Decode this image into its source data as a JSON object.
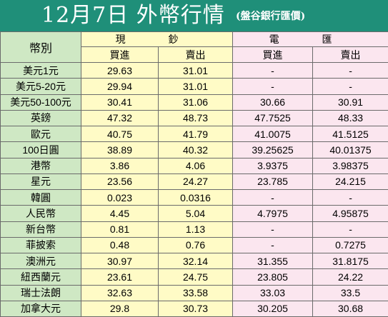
{
  "title": {
    "main": "12月7日 外幣行情",
    "sub": "(盤谷銀行匯價)"
  },
  "header": {
    "currency": "幣別",
    "cash": "現 鈔",
    "telegraphic": "電 匯",
    "buy": "買進",
    "sell": "賣出"
  },
  "rows": [
    {
      "name": "美元1元",
      "cash_buy": "29.63",
      "cash_sell": "31.01",
      "tt_buy": "-",
      "tt_sell": "-"
    },
    {
      "name": "美元5-20元",
      "cash_buy": "29.94",
      "cash_sell": "31.01",
      "tt_buy": "-",
      "tt_sell": "-"
    },
    {
      "name": "美元50-100元",
      "cash_buy": "30.41",
      "cash_sell": "31.06",
      "tt_buy": "30.66",
      "tt_sell": "30.91"
    },
    {
      "name": "英鎊",
      "cash_buy": "47.32",
      "cash_sell": "48.73",
      "tt_buy": "47.7525",
      "tt_sell": "48.33"
    },
    {
      "name": "歐元",
      "cash_buy": "40.75",
      "cash_sell": "41.79",
      "tt_buy": "41.0075",
      "tt_sell": "41.5125"
    },
    {
      "name": "100日圓",
      "cash_buy": "38.89",
      "cash_sell": "40.32",
      "tt_buy": "39.25625",
      "tt_sell": "40.01375"
    },
    {
      "name": "港幣",
      "cash_buy": "3.86",
      "cash_sell": "4.06",
      "tt_buy": "3.9375",
      "tt_sell": "3.98375"
    },
    {
      "name": "星元",
      "cash_buy": "23.56",
      "cash_sell": "24.27",
      "tt_buy": "23.785",
      "tt_sell": "24.215"
    },
    {
      "name": "韓圓",
      "cash_buy": "0.023",
      "cash_sell": "0.0316",
      "tt_buy": "-",
      "tt_sell": "-"
    },
    {
      "name": "人民幣",
      "cash_buy": "4.45",
      "cash_sell": "5.04",
      "tt_buy": "4.7975",
      "tt_sell": "4.95875"
    },
    {
      "name": "新台幣",
      "cash_buy": "0.81",
      "cash_sell": "1.13",
      "tt_buy": "-",
      "tt_sell": "-"
    },
    {
      "name": "菲披索",
      "cash_buy": "0.48",
      "cash_sell": "0.76",
      "tt_buy": "-",
      "tt_sell": "0.7275"
    },
    {
      "name": "澳洲元",
      "cash_buy": "30.97",
      "cash_sell": "32.14",
      "tt_buy": "31.355",
      "tt_sell": "31.8175"
    },
    {
      "name": "紐西蘭元",
      "cash_buy": "23.61",
      "cash_sell": "24.75",
      "tt_buy": "23.805",
      "tt_sell": "24.22"
    },
    {
      "name": "瑞士法朗",
      "cash_buy": "32.63",
      "cash_sell": "33.58",
      "tt_buy": "33.03",
      "tt_sell": "33.5"
    },
    {
      "name": "加拿大元",
      "cash_buy": "29.8",
      "cash_sell": "30.73",
      "tt_buy": "30.205",
      "tt_sell": "30.68"
    }
  ],
  "colors": {
    "title_bg": "#1f8f79",
    "name_col": "#cfe8c4",
    "cash_col": "#fffbc6",
    "tt_col": "#fbe6ef"
  }
}
